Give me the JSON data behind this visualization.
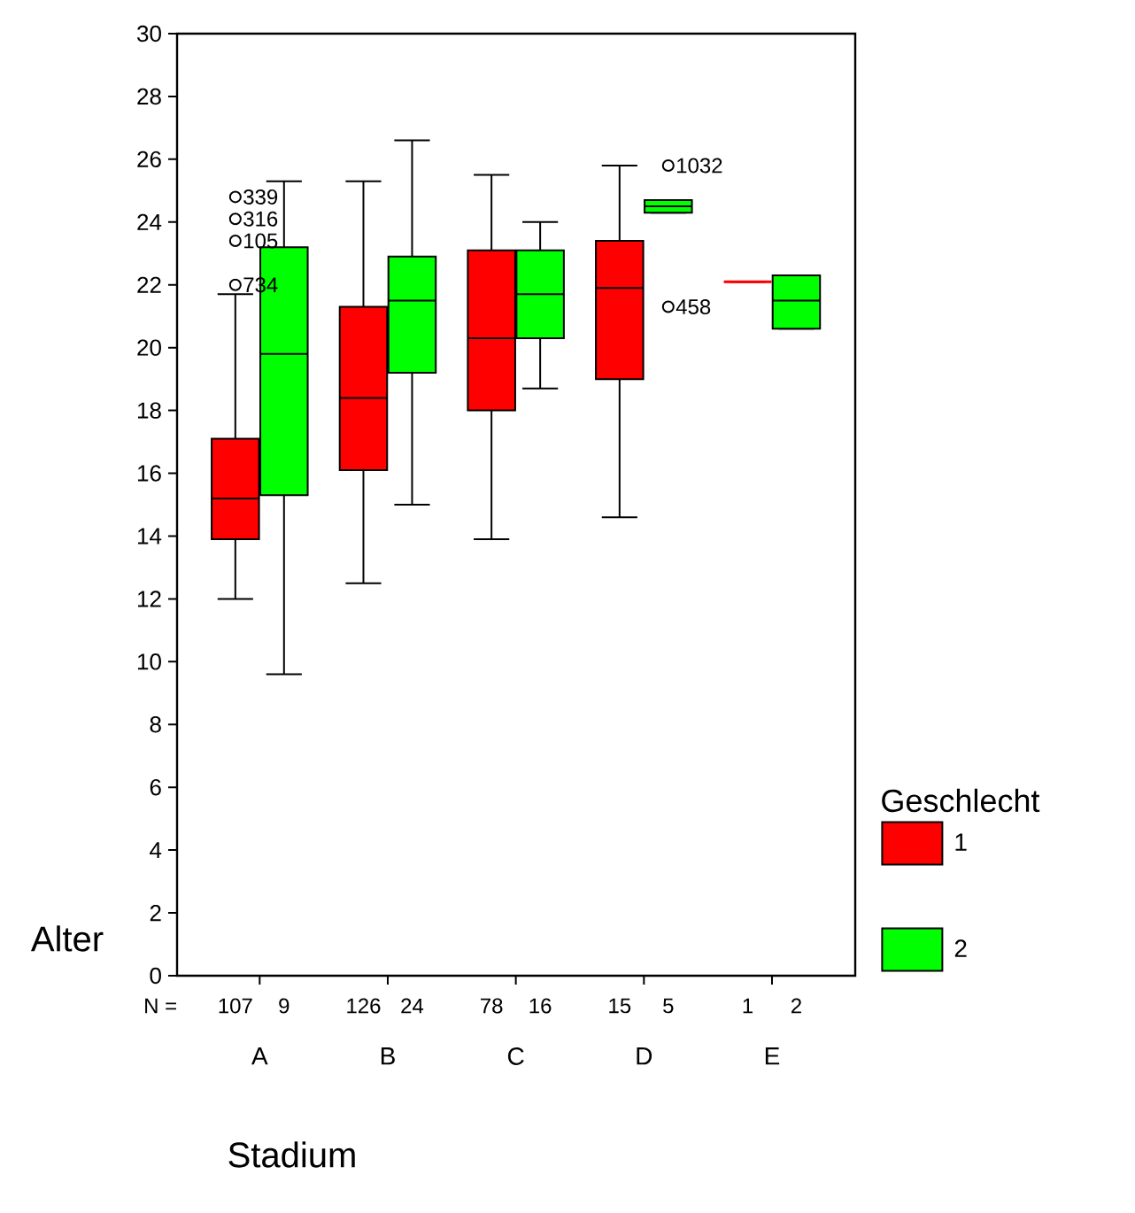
{
  "chart_data": {
    "type": "box",
    "xlabel": "Stadium",
    "ylabel": "Alter",
    "legend_title": "Geschlecht",
    "legend": "right",
    "categories": [
      "A",
      "B",
      "C",
      "D",
      "E"
    ],
    "ylim": [
      0,
      30
    ],
    "yticks": [
      0,
      2,
      4,
      6,
      8,
      10,
      12,
      14,
      16,
      18,
      20,
      22,
      24,
      26,
      28,
      30
    ],
    "marker": "circle",
    "series": [
      {
        "name": "1",
        "color": "#ff0000",
        "boxes": [
          {
            "low": 12.0,
            "q1": 13.9,
            "median": 15.2,
            "q3": 17.1,
            "high": 21.7,
            "outliers": [
              24.8,
              24.1,
              23.4,
              22.0
            ]
          },
          {
            "low": 12.5,
            "q1": 16.1,
            "median": 18.4,
            "q3": 21.3,
            "high": 25.3
          },
          {
            "low": 13.9,
            "q1": 18.0,
            "median": 20.3,
            "q3": 23.1,
            "high": 25.5
          },
          {
            "low": 14.6,
            "q1": 19.0,
            "median": 21.9,
            "q3": 23.4,
            "high": 25.8
          },
          {
            "low": 22.1,
            "q1": 22.1,
            "median": 22.1,
            "q3": 22.1,
            "high": 22.1
          }
        ]
      },
      {
        "name": "2",
        "color": "#00ff00",
        "boxes": [
          {
            "low": 9.6,
            "q1": 15.3,
            "median": 19.8,
            "q3": 23.2,
            "high": 25.3
          },
          {
            "low": 15.0,
            "q1": 19.2,
            "median": 21.5,
            "q3": 22.9,
            "high": 26.6
          },
          {
            "low": 18.7,
            "q1": 20.3,
            "median": 21.7,
            "q3": 23.1,
            "high": 24.0
          },
          {
            "low": 24.3,
            "q1": 24.3,
            "median": 24.5,
            "q3": 24.7,
            "high": 24.7,
            "outliers": [
              25.8,
              21.3
            ]
          },
          {
            "low": 20.6,
            "q1": 20.6,
            "median": 21.5,
            "q3": 22.3,
            "high": 22.3
          }
        ]
      }
    ],
    "annotations": [
      "N =",
      "107",
      "9",
      "126",
      "24",
      "78",
      "16",
      "15",
      "5",
      "1",
      "2",
      "339",
      "316",
      "105",
      "734",
      "1032",
      "458"
    ]
  }
}
